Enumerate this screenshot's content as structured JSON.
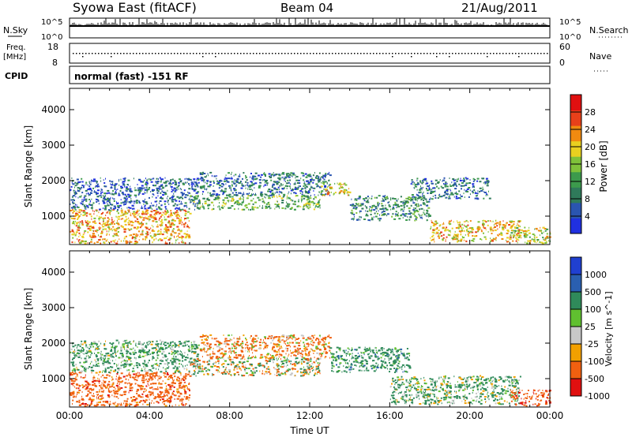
{
  "header": {
    "title": "Syowa East (fitACF)",
    "beam": "Beam 04",
    "date": "21/Aug/2011"
  },
  "status_panels": {
    "nsky_label": "N.Sky",
    "nsky_ticks": [
      "10^5",
      "10^0"
    ],
    "nsearch_label": "N.Search",
    "nsearch_ticks": [
      "10^5",
      "10^0"
    ],
    "freq_label": "Freq.",
    "freq_unit": "[MHz]",
    "freq_ticks": [
      "18",
      "8"
    ],
    "nave_label": "Nave",
    "nave_ticks": [
      "60",
      "0"
    ],
    "cpid_label": "CPID",
    "cpid_text": "normal (fast) -151 RF"
  },
  "chart_data": [
    {
      "type": "heatmap",
      "panel": "power",
      "xlabel": "",
      "ylabel": "Slant Range [km]",
      "xlim_hours": [
        0,
        24
      ],
      "ylim": [
        200,
        4600
      ],
      "yticks": [
        "1000",
        "2000",
        "3000",
        "4000"
      ],
      "colorbar": {
        "label": "Power [dB]",
        "range": [
          0,
          32
        ],
        "ticks": [
          "4",
          "8",
          "12",
          "16",
          "20",
          "24",
          "28"
        ],
        "colors": [
          "#2030e0",
          "#2a55b0",
          "#2f7a5a",
          "#3c9a4c",
          "#7fc23a",
          "#e8d020",
          "#f08a10",
          "#e8401a",
          "#e01010"
        ]
      },
      "bands": [
        {
          "x0": 0.0,
          "x1": 6.0,
          "y0": 250,
          "y1": 1200,
          "v": 22
        },
        {
          "x0": 0.0,
          "x1": 6.5,
          "y0": 1200,
          "y1": 2100,
          "v": 6
        },
        {
          "x0": 6.0,
          "x1": 12.5,
          "y0": 1200,
          "y1": 1600,
          "v": 14
        },
        {
          "x0": 6.5,
          "x1": 13.0,
          "y0": 1600,
          "y1": 2250,
          "v": 8
        },
        {
          "x0": 12.5,
          "x1": 14.0,
          "y0": 1600,
          "y1": 1950,
          "v": 20
        },
        {
          "x0": 14.0,
          "x1": 18.0,
          "y0": 900,
          "y1": 1600,
          "v": 10
        },
        {
          "x0": 17.0,
          "x1": 21.0,
          "y0": 1500,
          "y1": 2100,
          "v": 8
        },
        {
          "x0": 18.0,
          "x1": 22.5,
          "y0": 300,
          "y1": 900,
          "v": 20
        },
        {
          "x0": 22.0,
          "x1": 24.0,
          "y0": 250,
          "y1": 700,
          "v": 18
        }
      ]
    },
    {
      "type": "heatmap",
      "panel": "velocity",
      "xlabel": "Time UT",
      "ylabel": "Slant Range [km]",
      "xlim_hours": [
        0,
        24
      ],
      "xticks": [
        "00:00",
        "04:00",
        "08:00",
        "12:00",
        "16:00",
        "20:00",
        "00:00"
      ],
      "ylim": [
        200,
        4600
      ],
      "yticks": [
        "1000",
        "2000",
        "3000",
        "4000"
      ],
      "colorbar": {
        "label": "Velocity [m s^-1]",
        "ticks": [
          "1000",
          "500",
          "100",
          "25",
          "-25",
          "-100",
          "-500",
          "-1000"
        ],
        "colors": [
          "#2040d0",
          "#2a5fb0",
          "#2f8a5a",
          "#60c030",
          "#c8c8c8",
          "#f2a000",
          "#f06010",
          "#e01010"
        ]
      },
      "bands": [
        {
          "x0": 0.0,
          "x1": 6.0,
          "y0": 250,
          "y1": 1200,
          "v": -300
        },
        {
          "x0": 0.0,
          "x1": 6.5,
          "y0": 1200,
          "y1": 2100,
          "v": 200
        },
        {
          "x0": 6.0,
          "x1": 12.5,
          "y0": 1100,
          "y1": 1600,
          "v": 0
        },
        {
          "x0": 6.5,
          "x1": 13.0,
          "y0": 1600,
          "y1": 2250,
          "v": -150
        },
        {
          "x0": 13.0,
          "x1": 17.0,
          "y0": 1200,
          "y1": 1900,
          "v": 300
        },
        {
          "x0": 16.0,
          "x1": 22.5,
          "y0": 300,
          "y1": 1100,
          "v": 150
        },
        {
          "x0": 22.0,
          "x1": 24.0,
          "y0": 250,
          "y1": 700,
          "v": -400
        }
      ]
    }
  ]
}
